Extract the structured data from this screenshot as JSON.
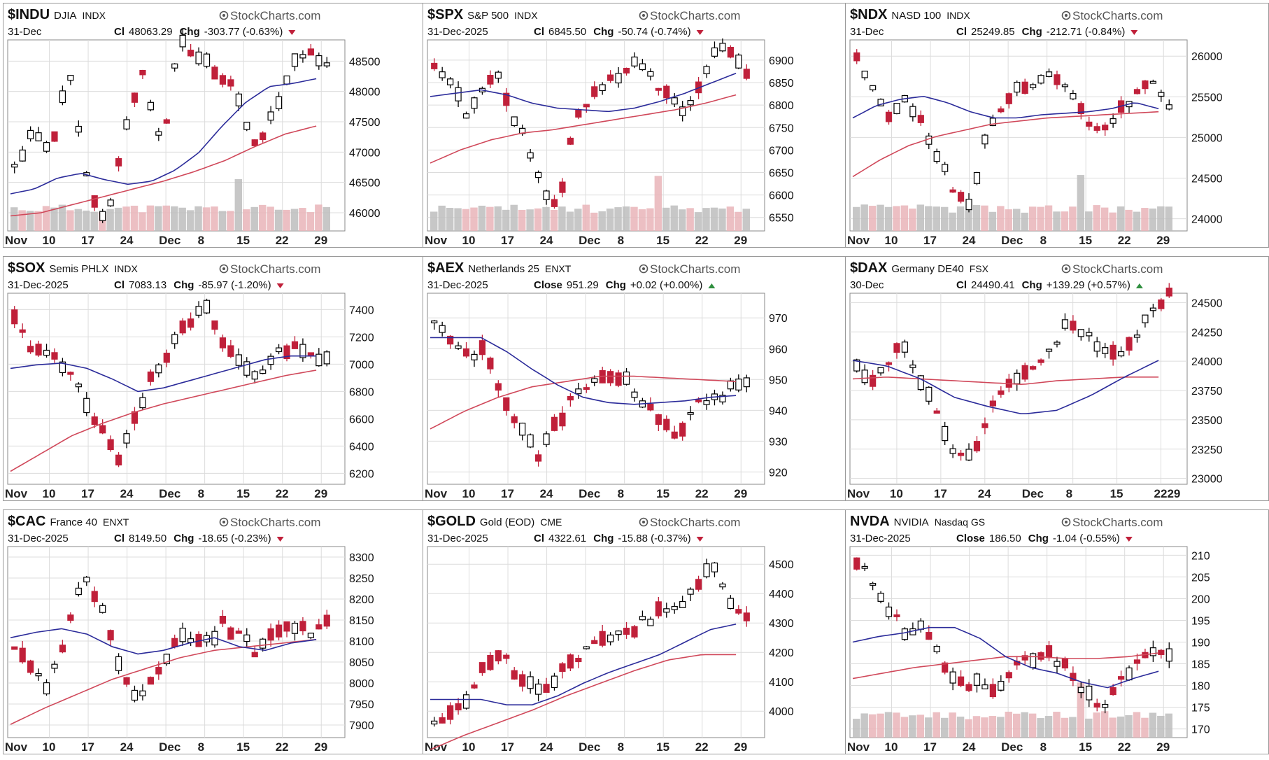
{
  "layout": {
    "columns": 3,
    "rows": 3
  },
  "colors": {
    "up": "#000000",
    "down": "#c0203a",
    "ma20": "#2b2b9a",
    "ma50": "#d0485a",
    "vol_up": "#bdbdbd",
    "vol_down": "#e9b4b8",
    "grid": "#dcdcdc",
    "chg_up": "#2f8f3f",
    "chg_down": "#c0203a"
  },
  "watermark": "StockCharts.com",
  "chart_data": [
    {
      "type": "candlestick",
      "symbol": "$INDU",
      "name": "DJIA",
      "exchange": "INDX",
      "date": "31-Dec",
      "close_label": "Cl",
      "close": "48063.29",
      "chg_label": "Chg",
      "chg": "-303.77 (-0.63%)",
      "direction": "down",
      "xticks": [
        "Nov",
        "10",
        "17",
        "24",
        "Dec",
        "8",
        "15",
        "22",
        "29"
      ],
      "yticks": [
        "48500",
        "48000",
        "47500",
        "47000",
        "46500",
        "46000"
      ],
      "ylim": [
        45700,
        48850
      ],
      "volume": true,
      "seed": 11,
      "range": [
        46000,
        48600
      ],
      "shape": [
        0.3,
        0.5,
        0.4,
        0.9,
        0.2,
        -0.1,
        0.5,
        0.9,
        0.4,
        1.1,
        1.0,
        0.9,
        0.8,
        0.4,
        0.6,
        0.9,
        1.05,
        0.95
      ],
      "ma20": [
        0.12,
        0.15,
        0.22,
        0.25,
        0.21,
        0.18,
        0.2,
        0.27,
        0.38,
        0.55,
        0.7,
        0.8,
        0.82,
        0.85
      ],
      "ma50": [
        -0.02,
        0.0,
        0.05,
        0.1,
        0.15,
        0.2,
        0.26,
        0.33,
        0.42,
        0.5,
        0.55
      ]
    },
    {
      "type": "candlestick",
      "symbol": "$SPX",
      "name": "S&P 500",
      "exchange": "INDX",
      "date": "31-Dec-2025",
      "close_label": "Cl",
      "close": "6845.50",
      "chg_label": "Chg",
      "chg": "-50.74 (-0.74%)",
      "direction": "down",
      "xticks": [
        "Nov",
        "10",
        "17",
        "24",
        "Dec",
        "8",
        "15",
        "22",
        "29"
      ],
      "yticks": [
        "6900",
        "6850",
        "6800",
        "6750",
        "6700",
        "6650",
        "6600",
        "6550"
      ],
      "ylim": [
        6520,
        6945
      ],
      "volume": true,
      "seed": 23,
      "range": [
        6560,
        6930
      ],
      "shape": [
        0.9,
        0.8,
        0.6,
        0.75,
        0.85,
        0.6,
        0.4,
        0.15,
        0.05,
        0.6,
        0.7,
        0.8,
        0.85,
        0.9,
        0.8,
        0.7,
        0.6,
        0.8,
        1.0,
        0.95,
        0.85
      ],
      "ma20": [
        0.7,
        0.72,
        0.74,
        0.71,
        0.66,
        0.63,
        0.62,
        0.61,
        0.63,
        0.67,
        0.72,
        0.78,
        0.84
      ],
      "ma50": [
        0.3,
        0.38,
        0.44,
        0.48,
        0.5,
        0.53,
        0.56,
        0.59,
        0.62,
        0.66,
        0.71
      ]
    },
    {
      "type": "candlestick",
      "symbol": "$NDX",
      "name": "NASD 100",
      "exchange": "INDX",
      "date": "31-Dec",
      "close_label": "Cl",
      "close": "25249.85",
      "chg_label": "Chg",
      "chg": "-212.71 (-0.84%)",
      "direction": "down",
      "xticks": [
        "Nov",
        "10",
        "17",
        "24",
        "Dec",
        "8",
        "15",
        "22",
        "29"
      ],
      "yticks": [
        "26000",
        "25500",
        "25000",
        "24500",
        "24000"
      ],
      "ylim": [
        23850,
        26200
      ],
      "volume": true,
      "seed": 37,
      "range": [
        24100,
        26000
      ],
      "shape": [
        1.0,
        0.8,
        0.6,
        0.75,
        0.55,
        0.35,
        0.1,
        0.05,
        0.55,
        0.7,
        0.8,
        0.85,
        0.88,
        0.75,
        0.6,
        0.5,
        0.65,
        0.75,
        0.82,
        0.7
      ],
      "ma20": [
        0.6,
        0.68,
        0.72,
        0.74,
        0.7,
        0.64,
        0.6,
        0.6,
        0.62,
        0.63,
        0.64,
        0.66,
        0.7,
        0.66
      ],
      "ma50": [
        0.22,
        0.33,
        0.42,
        0.48,
        0.52,
        0.56,
        0.58,
        0.6,
        0.61,
        0.62,
        0.63,
        0.64
      ]
    },
    {
      "type": "candlestick",
      "symbol": "$SOX",
      "name": "Semis PHLX",
      "exchange": "INDX",
      "date": "31-Dec-2025",
      "close_label": "Cl",
      "close": "7083.13",
      "chg_label": "Chg",
      "chg": "-85.97 (-1.20%)",
      "direction": "down",
      "xticks": [
        "Nov",
        "10",
        "17",
        "24",
        "Dec",
        "8",
        "15",
        "22",
        "29"
      ],
      "yticks": [
        "7400",
        "7200",
        "7000",
        "6800",
        "6600",
        "6400",
        "6200"
      ],
      "ylim": [
        6120,
        7520
      ],
      "volume": false,
      "seed": 41,
      "range": [
        6150,
        7450
      ],
      "shape": [
        0.9,
        0.75,
        0.7,
        0.65,
        0.45,
        0.3,
        0.1,
        0.35,
        0.6,
        0.75,
        0.9,
        1.0,
        0.8,
        0.65,
        0.55,
        0.7,
        0.75,
        0.72,
        0.68
      ],
      "ma20": [
        0.63,
        0.65,
        0.66,
        0.63,
        0.57,
        0.5,
        0.52,
        0.56,
        0.6,
        0.64,
        0.68,
        0.7,
        0.7
      ],
      "ma50": [
        0.05,
        0.15,
        0.25,
        0.32,
        0.38,
        0.43,
        0.47,
        0.51,
        0.55,
        0.59,
        0.62
      ]
    },
    {
      "type": "candlestick",
      "symbol": "$AEX",
      "name": "Netherlands 25",
      "exchange": "ENXT",
      "date": "31-Dec-2025",
      "close_label": "Close",
      "close": "951.29",
      "chg_label": "Chg",
      "chg": "+0.02 (+0.00%)",
      "direction": "up",
      "xticks": [
        "Nov",
        "10",
        "17",
        "24",
        "Dec",
        "8",
        "15",
        "22",
        "29"
      ],
      "yticks": [
        "970",
        "960",
        "950",
        "940",
        "930",
        "920"
      ],
      "ylim": [
        916,
        978
      ],
      "volume": false,
      "seed": 53,
      "range": [
        918,
        975
      ],
      "shape": [
        0.9,
        0.8,
        0.7,
        0.75,
        0.45,
        0.3,
        0.1,
        0.3,
        0.45,
        0.55,
        0.6,
        0.55,
        0.45,
        0.35,
        0.25,
        0.4,
        0.45,
        0.5,
        0.55
      ],
      "ma20": [
        0.8,
        0.8,
        0.8,
        0.72,
        0.62,
        0.53,
        0.46,
        0.43,
        0.42,
        0.43,
        0.44,
        0.46,
        0.47
      ],
      "ma50": [
        0.28,
        0.38,
        0.46,
        0.52,
        0.55,
        0.58,
        0.58,
        0.57,
        0.56,
        0.55
      ]
    },
    {
      "type": "candlestick",
      "symbol": "$DAX",
      "name": "Germany DE40",
      "exchange": "FSX",
      "date": "30-Dec",
      "close_label": "Cl",
      "close": "24490.41",
      "chg_label": "Chg",
      "chg": "+139.29 (+0.57%)",
      "direction": "up",
      "xticks": [
        "Nov",
        "10",
        "17",
        "24",
        "Dec",
        "8",
        "15",
        "2229"
      ],
      "yticks": [
        "24500",
        "24250",
        "24000",
        "23750",
        "23500",
        "23250",
        "23000"
      ],
      "ylim": [
        22950,
        24580
      ],
      "volume": false,
      "seed": 67,
      "range": [
        22980,
        24560
      ],
      "shape": [
        0.6,
        0.55,
        0.65,
        0.75,
        0.5,
        0.35,
        0.1,
        0.15,
        0.35,
        0.5,
        0.55,
        0.65,
        0.75,
        0.85,
        0.8,
        0.7,
        0.65,
        0.8,
        0.95,
        1.0
      ],
      "ma20": [
        0.65,
        0.62,
        0.55,
        0.45,
        0.4,
        0.36,
        0.38,
        0.46,
        0.56,
        0.65
      ],
      "ma50": [
        0.55,
        0.56,
        0.55,
        0.54,
        0.53,
        0.52,
        0.54,
        0.55,
        0.56,
        0.56
      ]
    },
    {
      "type": "candlestick",
      "symbol": "$CAC",
      "name": "France 40",
      "exchange": "ENXT",
      "date": "31-Dec-2025",
      "close_label": "Cl",
      "close": "8149.50",
      "chg_label": "Chg",
      "chg": "-18.65 (-0.23%)",
      "direction": "down",
      "xticks": [
        "Nov",
        "10",
        "17",
        "24",
        "Dec",
        "8",
        "15",
        "22",
        "29"
      ],
      "yticks": [
        "8300",
        "8250",
        "8200",
        "8150",
        "8100",
        "8050",
        "8000",
        "7950",
        "7900"
      ],
      "ylim": [
        7870,
        8325
      ],
      "volume": false,
      "seed": 71,
      "range": [
        7880,
        8310
      ],
      "shape": [
        0.5,
        0.35,
        0.25,
        0.55,
        0.85,
        0.7,
        0.4,
        0.2,
        0.3,
        0.45,
        0.55,
        0.5,
        0.6,
        0.55,
        0.45,
        0.55,
        0.6,
        0.55,
        0.65
      ],
      "ma20": [
        0.53,
        0.56,
        0.58,
        0.55,
        0.48,
        0.44,
        0.46,
        0.5,
        0.53,
        0.48,
        0.46,
        0.5,
        0.52
      ],
      "ma50": [
        0.05,
        0.14,
        0.22,
        0.3,
        0.36,
        0.42,
        0.46,
        0.48,
        0.5,
        0.52
      ]
    },
    {
      "type": "candlestick",
      "symbol": "$GOLD",
      "name": "Gold (EOD)",
      "exchange": "CME",
      "date": "31-Dec-2025",
      "close_label": "Cl",
      "close": "4322.61",
      "chg_label": "Chg",
      "chg": "-15.88 (-0.37%)",
      "direction": "down",
      "xticks": [
        "Nov",
        "10",
        "17",
        "24",
        "Dec",
        "8",
        "15",
        "22",
        "29"
      ],
      "yticks": [
        "4500",
        "4400",
        "4300",
        "4200",
        "4100",
        "4000"
      ],
      "ylim": [
        3910,
        4560
      ],
      "volume": false,
      "seed": 83,
      "range": [
        3930,
        4540
      ],
      "shape": [
        0.05,
        0.1,
        0.2,
        0.35,
        0.45,
        0.3,
        0.25,
        0.25,
        0.35,
        0.45,
        0.5,
        0.55,
        0.58,
        0.62,
        0.68,
        0.72,
        0.8,
        0.95,
        0.7,
        0.62
      ],
      "ma20": [
        0.18,
        0.18,
        0.18,
        0.15,
        0.15,
        0.2,
        0.27,
        0.33,
        0.38,
        0.43,
        0.5,
        0.57,
        0.6
      ],
      "ma50": [
        -0.1,
        -0.02,
        0.05,
        0.12,
        0.2,
        0.27,
        0.34,
        0.4,
        0.43,
        0.43
      ]
    },
    {
      "type": "candlestick",
      "symbol": "NVDA",
      "name": "NVIDIA",
      "exchange": "Nasdaq GS",
      "date": "31-Dec-2025",
      "close_label": "Close",
      "close": "186.50",
      "chg_label": "Chg",
      "chg": "-1.04 (-0.55%)",
      "direction": "down",
      "xticks": [
        "Nov",
        "10",
        "17",
        "24",
        "Dec",
        "8",
        "15",
        "22",
        "29"
      ],
      "yticks": [
        "210",
        "205",
        "200",
        "195",
        "190",
        "185",
        "180",
        "175",
        "170"
      ],
      "ylim": [
        168,
        212
      ],
      "volume": true,
      "seed": 97,
      "range": [
        169,
        211
      ],
      "shape": [
        0.95,
        0.85,
        0.7,
        0.55,
        0.6,
        0.45,
        0.35,
        0.25,
        0.3,
        0.2,
        0.35,
        0.4,
        0.45,
        0.4,
        0.3,
        0.2,
        0.15,
        0.3,
        0.4,
        0.45,
        0.42
      ],
      "ma20": [
        0.5,
        0.53,
        0.55,
        0.58,
        0.58,
        0.52,
        0.42,
        0.36,
        0.33,
        0.28,
        0.25,
        0.3,
        0.34
      ],
      "ma50": [
        0.3,
        0.33,
        0.36,
        0.38,
        0.4,
        0.42,
        0.42,
        0.41,
        0.41,
        0.42,
        0.44
      ]
    }
  ]
}
